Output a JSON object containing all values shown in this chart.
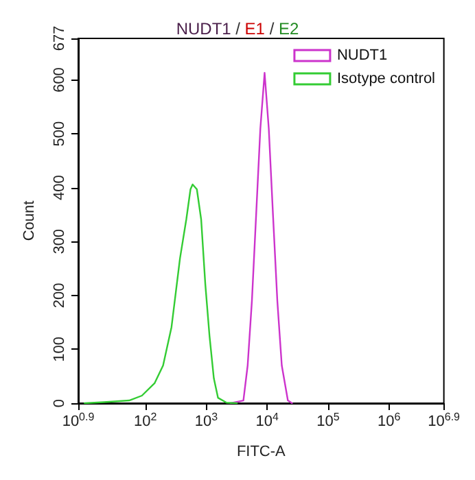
{
  "chart_data": {
    "type": "line",
    "title": "NUDT1 / E1 / E2",
    "xlabel": "FITC-A",
    "ylabel": "Count",
    "log": "x",
    "xlim": [
      7.943,
      7943000
    ],
    "xticks": [
      {
        "value": 7.943,
        "label": "10$^{0.9}$"
      },
      {
        "value": 100,
        "label": "10$^{2}$"
      },
      {
        "value": 1000,
        "label": "10$^{3}$"
      },
      {
        "value": 10000,
        "label": "10$^{4}$"
      },
      {
        "value": 100000,
        "label": "10$^{5}$"
      },
      {
        "value": 1000000,
        "label": "10$^{6}$"
      },
      {
        "value": 7943000,
        "label": "10$^{6.9}$"
      }
    ],
    "ylim": [
      0,
      677
    ],
    "yticks": [
      0,
      100,
      200,
      300,
      400,
      500,
      600,
      677
    ],
    "grid": false,
    "legend": "top right",
    "marker": "none",
    "line_style": "solid",
    "series": [
      {
        "name": "NUDT1",
        "color": "#cc33cc",
        "x": [
          2523,
          4074,
          4786,
          5623,
          6592,
          7727,
          9078,
          10641,
          12474,
          14689,
          17378,
          21878,
          25586
        ],
        "values": [
          0,
          5,
          70,
          190,
          349,
          509,
          613,
          509,
          349,
          190,
          70,
          5,
          0
        ]
      },
      {
        "name": "Isotype control",
        "color": "#33cc33",
        "x": [
          10.1,
          20.9,
          54.3,
          87.9,
          141.9,
          195.9,
          269.2,
          371.4,
          471,
          552,
          598,
          702,
          826,
          966,
          1132,
          1334,
          1563,
          2153,
          3206
        ],
        "values": [
          0,
          2,
          5,
          14,
          37,
          70,
          141,
          269,
          341,
          397,
          406,
          397,
          341,
          221,
          125,
          46,
          10,
          1,
          0
        ]
      }
    ]
  }
}
